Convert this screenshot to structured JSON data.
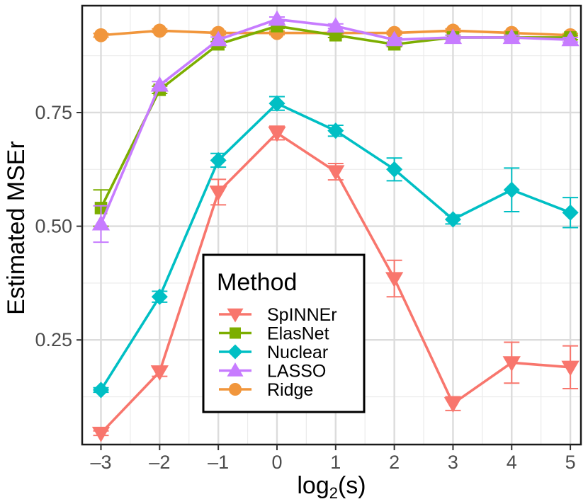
{
  "chart_data": {
    "type": "line",
    "xlabel_main": "log",
    "xlabel_sub": "2",
    "xlabel_tail": "(s)",
    "ylabel": "Estimated MSEr",
    "x": [
      -3,
      -2,
      -1,
      0,
      1,
      2,
      3,
      4,
      5
    ],
    "x_tick_labels": [
      "–3",
      "–2",
      "–1",
      "0",
      "1",
      "2",
      "3",
      "4",
      "5"
    ],
    "y_ticks": [
      0.25,
      0.5,
      0.75
    ],
    "y_tick_labels": [
      "0.25",
      "0.50",
      "0.75"
    ],
    "xlim": [
      -3.32,
      5.18
    ],
    "ylim": [
      0.02,
      0.985
    ],
    "grid": true,
    "legend": {
      "title": "Method",
      "placement": "center-left"
    },
    "series": [
      {
        "name": "SpINNEr",
        "color": "#F8766D",
        "marker": "triangle-down",
        "values": [
          0.045,
          0.18,
          0.575,
          0.705,
          0.62,
          0.385,
          0.11,
          0.2,
          0.19
        ],
        "error": [
          0.005,
          0.01,
          0.028,
          0.015,
          0.018,
          0.04,
          0.015,
          0.045,
          0.047
        ]
      },
      {
        "name": "ElasNet",
        "color": "#7CAE00",
        "marker": "square",
        "values": [
          0.54,
          0.8,
          0.9,
          0.94,
          0.92,
          0.9,
          0.915,
          0.915,
          0.915
        ],
        "error": [
          0.04,
          0.008,
          0.006,
          0.005,
          0.005,
          0.005,
          0.005,
          0.005,
          0.005
        ]
      },
      {
        "name": "Nuclear",
        "color": "#00BFC4",
        "marker": "diamond",
        "values": [
          0.14,
          0.345,
          0.645,
          0.77,
          0.71,
          0.625,
          0.515,
          0.58,
          0.53
        ],
        "error": [
          0.005,
          0.012,
          0.015,
          0.015,
          0.012,
          0.025,
          0.01,
          0.048,
          0.033
        ]
      },
      {
        "name": "LASSO",
        "color": "#C77CFF",
        "marker": "triangle-up",
        "values": [
          0.505,
          0.81,
          0.91,
          0.955,
          0.94,
          0.91,
          0.915,
          0.915,
          0.91
        ],
        "error": [
          0.04,
          0.008,
          0.006,
          0.005,
          0.005,
          0.005,
          0.005,
          0.005,
          0.005
        ]
      },
      {
        "name": "Ridge",
        "color": "#F1963C",
        "marker": "circle",
        "values": [
          0.92,
          0.93,
          0.925,
          0.925,
          0.925,
          0.925,
          0.93,
          0.925,
          0.92
        ],
        "error": [
          0.004,
          0.004,
          0.004,
          0.004,
          0.004,
          0.004,
          0.004,
          0.004,
          0.004
        ]
      }
    ]
  }
}
